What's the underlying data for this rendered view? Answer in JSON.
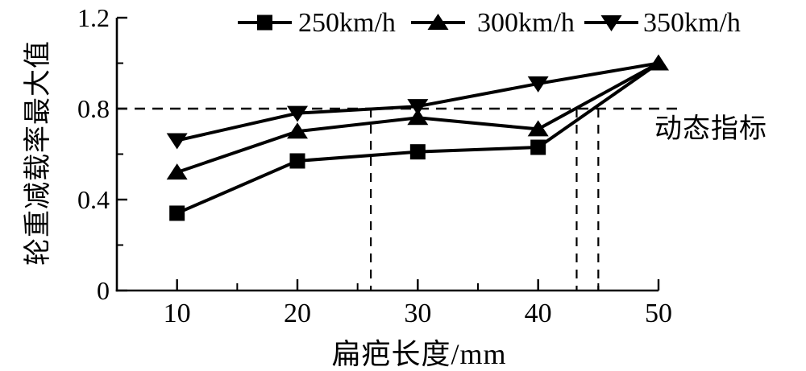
{
  "figure_title": "",
  "chart_data": {
    "type": "line",
    "x": [
      10,
      20,
      30,
      40,
      50
    ],
    "series": [
      {
        "name": "250km/h",
        "marker": "square",
        "values": [
          0.34,
          0.57,
          0.61,
          0.63,
          1.0
        ],
        "last_marker_visible": false
      },
      {
        "name": "300km/h",
        "marker": "triangle-up",
        "values": [
          0.52,
          0.7,
          0.76,
          0.71,
          1.0
        ],
        "last_marker_visible": true
      },
      {
        "name": "350km/h",
        "marker": "triangle-down",
        "values": [
          0.66,
          0.78,
          0.81,
          0.91,
          1.0
        ],
        "last_marker_visible": false
      }
    ],
    "xlabel": "扁疤长度/mm",
    "ylabel": "轮重减载率最大值",
    "xlim": [
      5,
      50
    ],
    "ylim": [
      0,
      1.2
    ],
    "x_major_ticks": [
      10,
      20,
      30,
      40,
      50
    ],
    "x_minor_ticks": [
      15,
      25,
      35,
      45
    ],
    "y_major_ticks": [
      0,
      0.4,
      0.8,
      1.2
    ],
    "y_major_tick_labels": [
      "0",
      "0.4",
      "0.8",
      "1.2"
    ],
    "y_minor_ticks": [
      0.2,
      0.6,
      1.0
    ],
    "grid": "off",
    "legend_position": "top",
    "reference_lines": {
      "horizontal": {
        "value": 0.8,
        "style": "dashed",
        "label": "动态指标"
      },
      "vertical_values": [
        26.1,
        43.2,
        45.0
      ],
      "vertical_style": "dashed"
    },
    "colors": {
      "foreground": "#000000",
      "background": "#ffffff"
    }
  },
  "legend": {
    "items": [
      {
        "label": "250km/h",
        "marker_icon": "square-marker-icon"
      },
      {
        "label": "300km/h",
        "marker_icon": "triangle-up-marker-icon"
      },
      {
        "label": "350km/h",
        "marker_icon": "triangle-down-marker-icon"
      }
    ]
  },
  "annotations": [
    {
      "text": "动态指标"
    }
  ]
}
